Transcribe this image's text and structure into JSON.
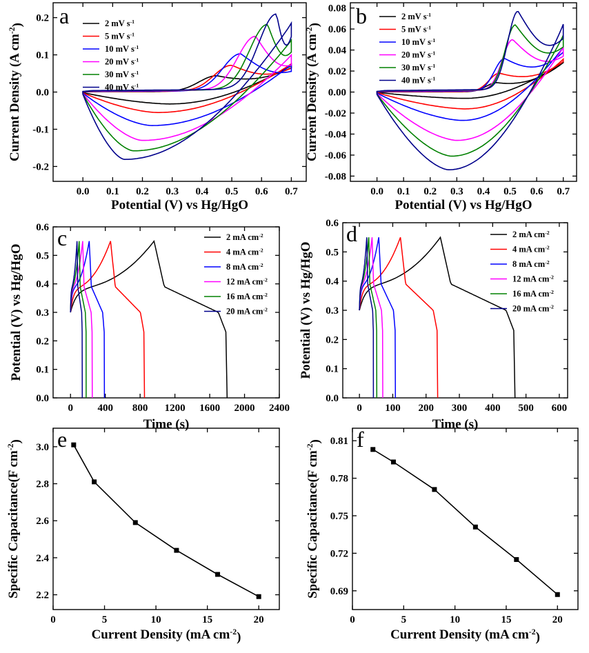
{
  "chart_data": [
    {
      "id": "a",
      "type": "line",
      "letter": "a",
      "xlabel": "Potential (V) vs Hg/HgO",
      "ylabel": "Current Density (A cm-2)",
      "ylabel_main": "Current Density (A cm",
      "ylabel_sup": "-2",
      "ylabel_end": ")",
      "xlim": [
        -0.1,
        0.75
      ],
      "ylim": [
        -0.24,
        0.24
      ],
      "xticks": [
        0.0,
        0.1,
        0.2,
        0.3,
        0.4,
        0.5,
        0.6,
        0.7
      ],
      "yticks": [
        -0.2,
        -0.1,
        0.0,
        0.1,
        0.2
      ],
      "xdec": 1,
      "ydec": 1,
      "legend_unit": "mV s",
      "legend_sup": "-1",
      "series": [
        {
          "name": "2 mV s-1",
          "label": "2",
          "color": "#000000",
          "rate": 2,
          "anodic": {
            "v": 0.45,
            "i": 0.044
          },
          "cathodic": {
            "v": 0.29,
            "i": -0.032
          },
          "end": 0.075
        },
        {
          "name": "5 mV s-1",
          "label": "5",
          "color": "#ff0000",
          "rate": 5,
          "anodic": {
            "v": 0.5,
            "i": 0.072
          },
          "cathodic": {
            "v": 0.25,
            "i": -0.055
          },
          "end": 0.08
        },
        {
          "name": "10 mV s-1",
          "label": "10",
          "color": "#0000ff",
          "rate": 10,
          "anodic": {
            "v": 0.53,
            "i": 0.103
          },
          "cathodic": {
            "v": 0.23,
            "i": -0.09
          },
          "end": 0.078
        },
        {
          "name": "20 mV s-1",
          "label": "20",
          "color": "#ff00ff",
          "rate": 20,
          "anodic": {
            "v": 0.58,
            "i": 0.15
          },
          "cathodic": {
            "v": 0.2,
            "i": -0.13
          },
          "end": 0.105
        },
        {
          "name": "30 mV s-1",
          "label": "30",
          "color": "#008000",
          "rate": 30,
          "anodic": {
            "v": 0.62,
            "i": 0.182
          },
          "cathodic": {
            "v": 0.17,
            "i": -0.158
          },
          "end": 0.147
        },
        {
          "name": "40 mV s-1",
          "label": "40",
          "color": "#00008b",
          "rate": 40,
          "anodic": {
            "v": 0.65,
            "i": 0.21
          },
          "cathodic": {
            "v": 0.14,
            "i": -0.181
          },
          "end": 0.195
        }
      ]
    },
    {
      "id": "b",
      "type": "line",
      "letter": "b",
      "xlabel": "Potential (V) vs Hg/HgO",
      "ylabel": "Current Density (A cm-2)",
      "ylabel_main": "Current Density (A cm",
      "ylabel_sup": "-2",
      "ylabel_end": ")",
      "xlim": [
        -0.1,
        0.75
      ],
      "ylim": [
        -0.085,
        0.085
      ],
      "xticks": [
        0.0,
        0.1,
        0.2,
        0.3,
        0.4,
        0.5,
        0.6,
        0.7
      ],
      "yticks": [
        -0.08,
        -0.06,
        -0.04,
        -0.02,
        0.0,
        0.02,
        0.04,
        0.06,
        0.08
      ],
      "xdec": 1,
      "ydec": 2,
      "legend_unit": "mV s",
      "legend_sup": "-1",
      "series": [
        {
          "name": "2 mV s-1",
          "label": "2",
          "color": "#000000",
          "rate": 2,
          "anodic": {
            "v": 0.45,
            "i": 0.009
          },
          "cathodic": {
            "v": 0.33,
            "i": -0.006
          },
          "end": 0.03
        },
        {
          "name": "5 mV s-1",
          "label": "5",
          "color": "#ff0000",
          "rate": 5,
          "anodic": {
            "v": 0.46,
            "i": 0.018
          },
          "cathodic": {
            "v": 0.33,
            "i": -0.016
          },
          "end": 0.033
        },
        {
          "name": "10 mV s-1",
          "label": "10",
          "color": "#0000ff",
          "rate": 10,
          "anodic": {
            "v": 0.48,
            "i": 0.032
          },
          "cathodic": {
            "v": 0.32,
            "i": -0.027
          },
          "end": 0.045
        },
        {
          "name": "20 mV s-1",
          "label": "20",
          "color": "#ff00ff",
          "rate": 20,
          "anodic": {
            "v": 0.51,
            "i": 0.05
          },
          "cathodic": {
            "v": 0.3,
            "i": -0.046
          },
          "end": 0.045
        },
        {
          "name": "30 mV s-1",
          "label": "30",
          "color": "#008000",
          "rate": 30,
          "anodic": {
            "v": 0.52,
            "i": 0.064
          },
          "cathodic": {
            "v": 0.28,
            "i": -0.061
          },
          "end": 0.057
        },
        {
          "name": "40 mV s-1",
          "label": "40",
          "color": "#00008b",
          "rate": 40,
          "anodic": {
            "v": 0.53,
            "i": 0.077
          },
          "cathodic": {
            "v": 0.27,
            "i": -0.074
          },
          "end": 0.068
        }
      ]
    },
    {
      "id": "c",
      "type": "line",
      "letter": "c",
      "xlabel": "Time (s)",
      "ylabel": "Potential (V) vs Hg/HgO",
      "xlim": [
        -200,
        2400
      ],
      "ylim": [
        0.0,
        0.6
      ],
      "xticks": [
        0,
        400,
        800,
        1200,
        1600,
        2000,
        2400
      ],
      "yticks": [
        0.0,
        0.1,
        0.2,
        0.3,
        0.4,
        0.5,
        0.6
      ],
      "xdec": 0,
      "ydec": 1,
      "legend_unit": "mA cm",
      "legend_sup": "-2",
      "series": [
        {
          "name": "2 mA cm-2",
          "label": "2",
          "color": "#000000",
          "charge_end": 960,
          "discharge_end": 1800
        },
        {
          "name": "4 mA cm-2",
          "label": "4",
          "color": "#ff0000",
          "charge_end": 460,
          "discharge_end": 850
        },
        {
          "name": "8 mA cm-2",
          "label": "8",
          "color": "#0000ff",
          "charge_end": 215,
          "discharge_end": 390
        },
        {
          "name": "12 mA cm-2",
          "label": "12",
          "color": "#ff00ff",
          "charge_end": 140,
          "discharge_end": 250
        },
        {
          "name": "16 mA cm-2",
          "label": "16",
          "color": "#008000",
          "charge_end": 100,
          "discharge_end": 180
        },
        {
          "name": "20 mA cm-2",
          "label": "20",
          "color": "#00008b",
          "charge_end": 75,
          "discharge_end": 135
        }
      ]
    },
    {
      "id": "d",
      "type": "line",
      "letter": "d",
      "xlabel": "Time (s)",
      "ylabel": "Potential (V) vs Hg/HgO",
      "xlim": [
        -50,
        625
      ],
      "ylim": [
        0.0,
        0.6
      ],
      "xticks": [
        0,
        100,
        200,
        300,
        400,
        500,
        600
      ],
      "yticks": [
        0.0,
        0.1,
        0.2,
        0.3,
        0.4,
        0.5,
        0.6
      ],
      "xdec": 0,
      "ydec": 1,
      "legend_unit": "mA cm",
      "legend_sup": "-2",
      "series": [
        {
          "name": "2 mA cm-2",
          "label": "2",
          "color": "#000000",
          "charge_end": 243,
          "discharge_end": 467
        },
        {
          "name": "4 mA cm-2",
          "label": "4",
          "color": "#ff0000",
          "charge_end": 123,
          "discharge_end": 235
        },
        {
          "name": "8 mA cm-2",
          "label": "8",
          "color": "#0000ff",
          "charge_end": 58,
          "discharge_end": 108
        },
        {
          "name": "12 mA cm-2",
          "label": "12",
          "color": "#ff00ff",
          "charge_end": 38,
          "discharge_end": 70
        },
        {
          "name": "16 mA cm-2",
          "label": "16",
          "color": "#008000",
          "charge_end": 28,
          "discharge_end": 52
        },
        {
          "name": "20 mA cm-2",
          "label": "20",
          "color": "#00008b",
          "charge_end": 22,
          "discharge_end": 42
        }
      ]
    },
    {
      "id": "e",
      "type": "line",
      "letter": "e",
      "xlabel": "Current Density (mA cm-2)",
      "ylabel": "Specific Capacitance(F cm-2)",
      "xlabel_main": "Current Density (mA cm",
      "xlabel_sup": "-2",
      "xlabel_end": ")",
      "ylabel_main": "Specific Capacitance(F cm",
      "ylabel_sup": "-2",
      "ylabel_end": ")",
      "xlim": [
        0,
        22
      ],
      "ylim": [
        2.12,
        3.1
      ],
      "xticks": [
        0,
        5,
        10,
        15,
        20
      ],
      "yticks": [
        2.2,
        2.4,
        2.6,
        2.8,
        3.0
      ],
      "xdec": 0,
      "ydec": 1,
      "x": [
        2,
        4,
        8,
        12,
        16,
        20
      ],
      "y": [
        3.01,
        2.81,
        2.59,
        2.44,
        2.31,
        2.19
      ]
    },
    {
      "id": "f",
      "type": "line",
      "letter": "f",
      "xlabel": "Current Density (mA cm-2)",
      "ylabel": "Specific Capacitance(F cm-2)",
      "xlabel_main": "Current Density (mA cm",
      "xlabel_sup": "-2",
      "xlabel_end": ")",
      "ylabel_main": "Specific Capacitance(F cm",
      "ylabel_sup": "-2",
      "ylabel_end": ")",
      "xlim": [
        0,
        22
      ],
      "ylim": [
        0.675,
        0.82
      ],
      "xticks": [
        0,
        5,
        10,
        15,
        20
      ],
      "yticks": [
        0.69,
        0.72,
        0.75,
        0.78,
        0.81
      ],
      "xdec": 0,
      "ydec": 2,
      "x": [
        2,
        4,
        8,
        12,
        16,
        20
      ],
      "y": [
        0.803,
        0.793,
        0.771,
        0.741,
        0.715,
        0.687
      ]
    }
  ]
}
